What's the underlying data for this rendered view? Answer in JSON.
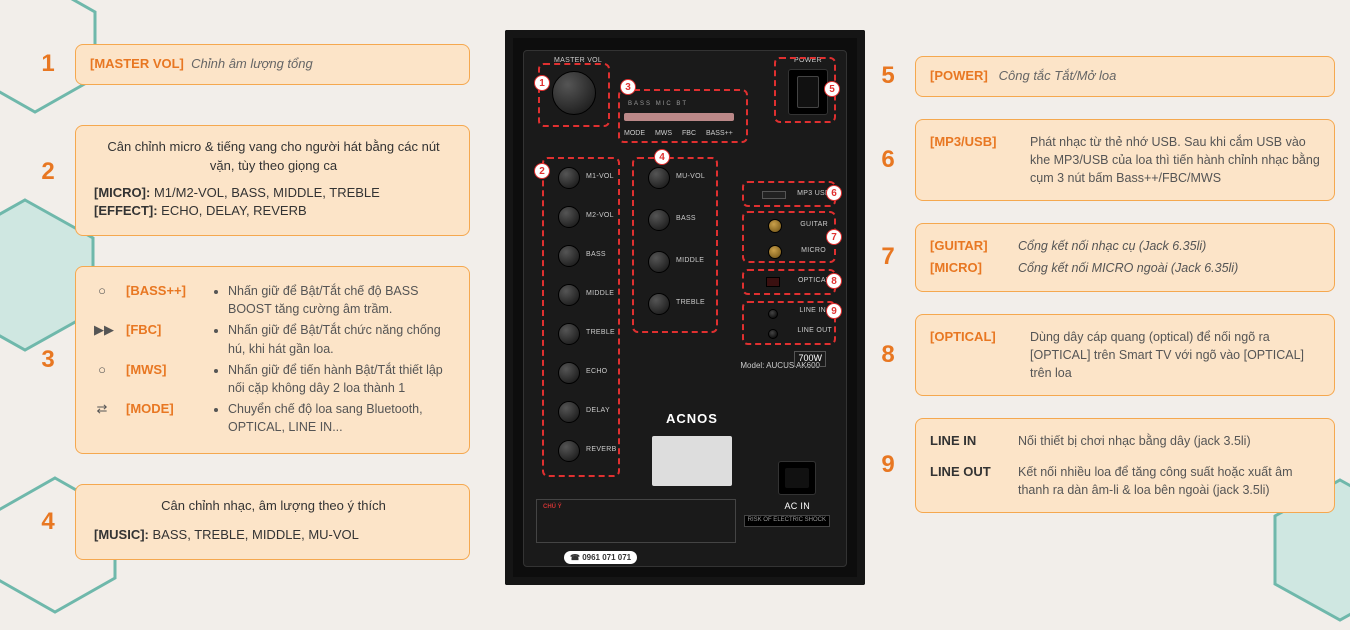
{
  "colors": {
    "accent": "#e87722",
    "card_bg": "#fce4c8",
    "card_border": "#f5a84f",
    "bg": "#f2eeea",
    "red": "#e03030",
    "hex_teal": "#6fb8ab",
    "hex_teal_fill": "#a8d5cc"
  },
  "panel": {
    "brand": "ACNOS",
    "model": "Model: AUCUS AK600",
    "watt": "700W",
    "hotline": "0961 071 071",
    "ac_label": "AC IN",
    "ac_warn": "RISK OF ELECTRIC SHOCK",
    "master_vol": "MASTER VOL",
    "power": "POWER",
    "mode_row": [
      "MODE",
      "MWS",
      "FBC",
      "BASS++"
    ],
    "led_row": [
      "BASS",
      "MIC",
      "BT"
    ],
    "micro_section": "MICRO",
    "effect_section": "EFFECT",
    "music_section": "MUSIC",
    "knobs_left": [
      "M1-VOL",
      "M2-VOL",
      "BASS",
      "MIDDLE",
      "TREBLE",
      "ECHO",
      "DELAY",
      "REVERB"
    ],
    "knobs_right": [
      "MU-VOL",
      "BASS",
      "MIDDLE",
      "TREBLE"
    ],
    "ports": {
      "mp3": "MP3 USB",
      "guitar": "GUITAR",
      "micro": "MICRO",
      "optical": "OPTICAL",
      "linein": "LINE IN",
      "lineout": "LINE OUT"
    },
    "warn_title": "CHÚ Ý"
  },
  "left": [
    {
      "n": "1",
      "title": "[MASTER VOL]",
      "desc": "Chỉnh âm lượng tổng"
    },
    {
      "n": "2",
      "lines": [
        {
          "center": "Cân chỉnh micro & tiếng vang cho người hát bằng các nút vặn, tùy theo giọng ca"
        },
        {
          "k": "[MICRO]:",
          "v": "M1/M2-VOL, BASS, MIDDLE, TREBLE"
        },
        {
          "k": "[EFFECT]:",
          "v": "ECHO, DELAY, REVERB"
        }
      ]
    },
    {
      "n": "3",
      "rows": [
        {
          "icon": "○",
          "tag": "[BASS++]",
          "txt": "Nhấn giữ để Bật/Tắt chế độ BASS BOOST tăng cường âm trầm."
        },
        {
          "icon": "▶▶",
          "tag": "[FBC]",
          "txt": "Nhấn giữ để Bật/Tắt chức năng chống hú, khi hát gần loa."
        },
        {
          "icon": "○",
          "tag": "[MWS]",
          "txt": "Nhấn giữ để tiến hành Bật/Tắt thiết lập nối cặp không dây 2 loa thành 1"
        },
        {
          "icon": "⇄",
          "tag": "[MODE]",
          "txt": "Chuyển chế độ loa sang Bluetooth, OPTICAL, LINE IN..."
        }
      ]
    },
    {
      "n": "4",
      "lines": [
        {
          "center": "Cân chỉnh nhạc, âm lượng theo ý thích"
        },
        {
          "k": "[MUSIC]:",
          "v": "BASS, TREBLE, MIDDLE, MU-VOL"
        }
      ]
    }
  ],
  "right": [
    {
      "n": "5",
      "title": "[POWER]",
      "desc": "Công tắc Tắt/Mở loa"
    },
    {
      "n": "6",
      "title": "[MP3/USB]",
      "desc": "Phát nhạc từ thẻ nhớ USB. Sau khi cắm USB vào khe MP3/USB của loa thì tiến hành chỉnh nhạc bằng cụm 3 nút bấm Bass++/FBC/MWS"
    },
    {
      "n": "7",
      "rows": [
        {
          "tag": "[GUITAR]",
          "txt": "Cổng kết nối nhạc cụ (Jack 6.35li)"
        },
        {
          "tag": "[MICRO]",
          "txt": "Cổng kết nối MICRO ngoài (Jack 6.35li)"
        }
      ]
    },
    {
      "n": "8",
      "title": "[OPTICAL]",
      "desc": "Dùng dây cáp quang (optical) để nối ngõ ra [OPTICAL] trên Smart TV với ngõ vào [OPTICAL] trên loa"
    },
    {
      "n": "9",
      "rows": [
        {
          "tagk": "LINE IN",
          "txt": "Nối thiết bị chơi nhạc bằng dây  (jack 3.5li)"
        },
        {
          "tagk": "LINE OUT",
          "txt": "Kết nối nhiều loa để tăng công suất hoặc xuất âm thanh ra dàn âm-li & loa bên ngoài (jack 3.5li)"
        }
      ]
    }
  ]
}
